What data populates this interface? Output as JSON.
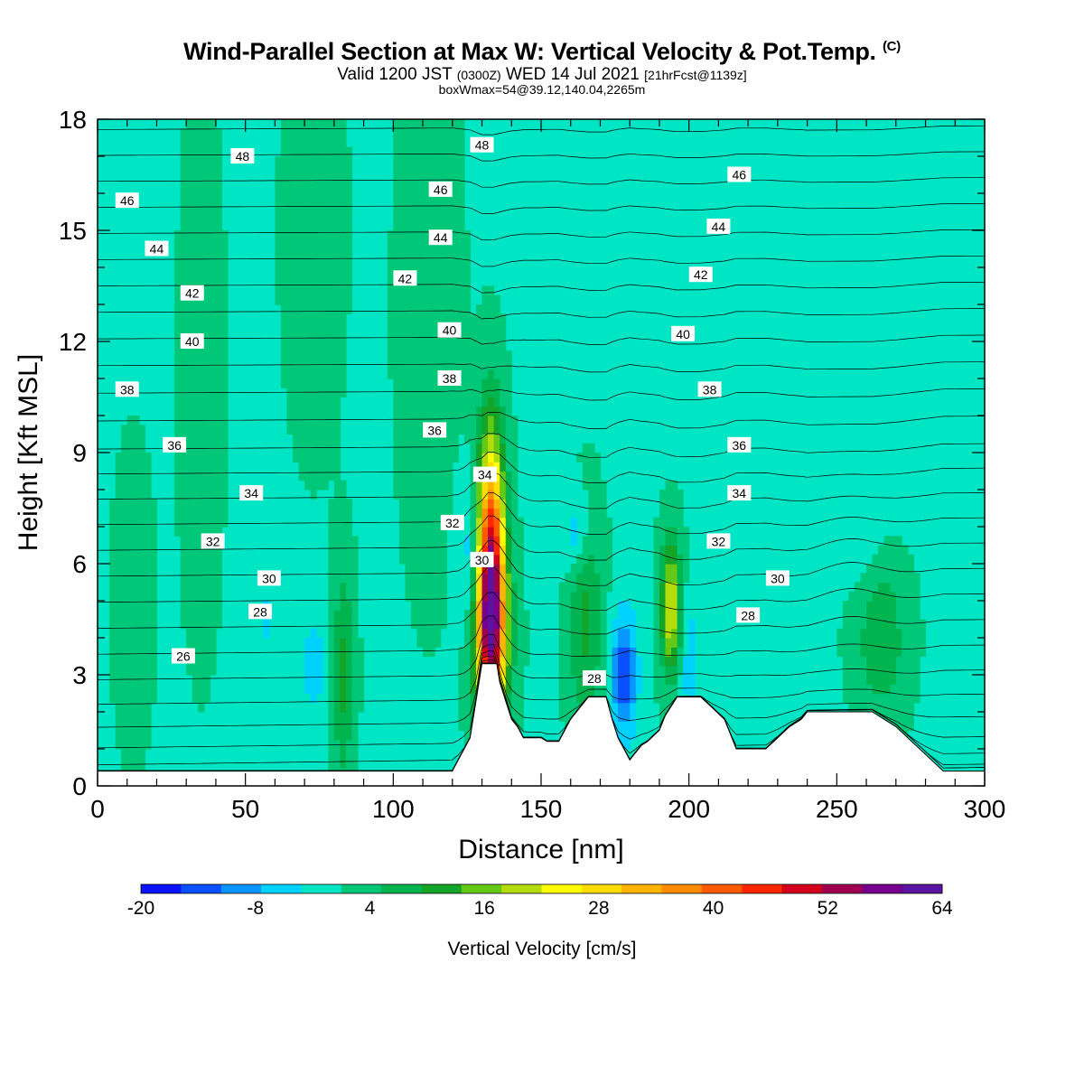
{
  "title": {
    "main": "Wind-Parallel Section at Max W: Vertical Velocity & Pot.Temp.",
    "copyright": "(C)"
  },
  "subtitle": {
    "valid_prefix": "Valid 1200 JST",
    "utc": "(0300Z)",
    "date": "WED 14 Jul 2021",
    "forecast": "[21hrFcst@1139z]"
  },
  "subtitle2": "boxWmax=54@39.12,140.04,2265m",
  "chart_data": {
    "type": "heatmap",
    "xlabel": "Distance [nm]",
    "ylabel": "Height [Kft MSL]",
    "xlim": [
      0,
      300
    ],
    "ylim": [
      0,
      18
    ],
    "xticks": [
      "0",
      "50",
      "100",
      "150",
      "200",
      "250",
      "300"
    ],
    "yticks": [
      "0",
      "3",
      "6",
      "9",
      "12",
      "15",
      "18"
    ],
    "background_color": "#00e6c4",
    "colorbar": {
      "label": "Vertical Velocity [cm/s]",
      "tick_labels": [
        "-20",
        "-8",
        "4",
        "16",
        "28",
        "40",
        "52",
        "64"
      ],
      "bounds": [
        -20,
        64
      ],
      "colors": [
        "#0a14ff",
        "#0a50ff",
        "#0a96ff",
        "#00d2ff",
        "#00e6c4",
        "#00c878",
        "#00b450",
        "#14a528",
        "#64c814",
        "#b4dc0a",
        "#ffff00",
        "#ffdc00",
        "#ffb400",
        "#ff8c00",
        "#ff5a00",
        "#ff2800",
        "#d2001e",
        "#a00050",
        "#78008c",
        "#5a14a0"
      ]
    },
    "terrain_profile": [
      [
        0,
        0.4
      ],
      [
        120,
        0.4
      ],
      [
        122,
        0.7
      ],
      [
        124,
        1.0
      ],
      [
        126,
        1.3
      ],
      [
        128,
        2.3
      ],
      [
        130,
        3.3
      ],
      [
        135,
        3.3
      ],
      [
        136,
        2.8
      ],
      [
        138,
        2.3
      ],
      [
        140,
        1.8
      ],
      [
        142,
        1.6
      ],
      [
        144,
        1.3
      ],
      [
        150,
        1.3
      ],
      [
        152,
        1.2
      ],
      [
        156,
        1.2
      ],
      [
        158,
        1.5
      ],
      [
        160,
        1.8
      ],
      [
        164,
        2.2
      ],
      [
        166,
        2.4
      ],
      [
        172,
        2.4
      ],
      [
        174,
        1.8
      ],
      [
        176,
        1.3
      ],
      [
        178,
        1.0
      ],
      [
        180,
        0.7
      ],
      [
        182,
        0.9
      ],
      [
        184,
        1.1
      ],
      [
        186,
        1.2
      ],
      [
        190,
        1.5
      ],
      [
        192,
        1.9
      ],
      [
        196,
        2.4
      ],
      [
        204,
        2.4
      ],
      [
        208,
        2.1
      ],
      [
        212,
        1.8
      ],
      [
        214,
        1.4
      ],
      [
        216,
        1.0
      ],
      [
        226,
        1.0
      ],
      [
        230,
        1.3
      ],
      [
        234,
        1.6
      ],
      [
        238,
        1.8
      ],
      [
        240,
        2.0
      ],
      [
        262,
        2.0
      ],
      [
        266,
        1.8
      ],
      [
        270,
        1.6
      ],
      [
        274,
        1.3
      ],
      [
        278,
        1.0
      ],
      [
        282,
        0.7
      ],
      [
        286,
        0.4
      ],
      [
        300,
        0.4
      ]
    ],
    "vertical_velocity_features": [
      {
        "x": 133,
        "y": 5.5,
        "sx": 3.2,
        "sy": 2.6,
        "value": 54
      },
      {
        "x": 133,
        "y": 4.0,
        "sx": 4.5,
        "sy": 1.5,
        "value": 18
      },
      {
        "x": 126,
        "y": 6.0,
        "sx": 3,
        "sy": 1.5,
        "value": -8
      },
      {
        "x": 178,
        "y": 3.0,
        "sx": 3,
        "sy": 1.2,
        "value": -16
      },
      {
        "x": 194,
        "y": 4.8,
        "sx": 2.5,
        "sy": 1.3,
        "value": 22
      },
      {
        "x": 165,
        "y": 4.5,
        "sx": 4,
        "sy": 2.0,
        "value": 10
      },
      {
        "x": 162,
        "y": 6.8,
        "sx": 3,
        "sy": 0.8,
        "value": -8
      },
      {
        "x": 200,
        "y": 3.5,
        "sx": 3,
        "sy": 1.4,
        "value": -6
      },
      {
        "x": 83,
        "y": 3.0,
        "sx": 2.5,
        "sy": 2.0,
        "value": 10
      },
      {
        "x": 73,
        "y": 3.3,
        "sx": 3,
        "sy": 1.0,
        "value": -6
      },
      {
        "x": 57,
        "y": 4.5,
        "sx": 3,
        "sy": 1.0,
        "value": -4
      },
      {
        "x": 265,
        "y": 4.0,
        "sx": 6,
        "sy": 1.5,
        "value": 8
      },
      {
        "x": 255,
        "y": 6.5,
        "sx": 8,
        "sy": 0.7,
        "value": -3
      },
      {
        "x": 112,
        "y": 13,
        "sx": 7,
        "sy": 5,
        "value": 3
      },
      {
        "x": 73,
        "y": 15,
        "sx": 7,
        "sy": 4,
        "value": 2.5
      },
      {
        "x": 35,
        "y": 11,
        "sx": 5,
        "sy": 5,
        "value": 2.5
      },
      {
        "x": 12,
        "y": 5,
        "sx": 5,
        "sy": 3,
        "value": 2
      }
    ],
    "contour_interval": 1,
    "contour_range": [
      22,
      51
    ],
    "contour_labels": [
      {
        "x": 49,
        "y": 17.0,
        "text": "48"
      },
      {
        "x": 130,
        "y": 17.3,
        "text": "48"
      },
      {
        "x": 10,
        "y": 15.8,
        "text": "46"
      },
      {
        "x": 116,
        "y": 16.1,
        "text": "46"
      },
      {
        "x": 217,
        "y": 16.5,
        "text": "46"
      },
      {
        "x": 20,
        "y": 14.5,
        "text": "44"
      },
      {
        "x": 116,
        "y": 14.8,
        "text": "44"
      },
      {
        "x": 210,
        "y": 15.1,
        "text": "44"
      },
      {
        "x": 32,
        "y": 13.3,
        "text": "42"
      },
      {
        "x": 104,
        "y": 13.7,
        "text": "42"
      },
      {
        "x": 204,
        "y": 13.8,
        "text": "42"
      },
      {
        "x": 32,
        "y": 12.0,
        "text": "40"
      },
      {
        "x": 119,
        "y": 12.3,
        "text": "40"
      },
      {
        "x": 198,
        "y": 12.2,
        "text": "40"
      },
      {
        "x": 10,
        "y": 10.7,
        "text": "38"
      },
      {
        "x": 119,
        "y": 11.0,
        "text": "38"
      },
      {
        "x": 207,
        "y": 10.7,
        "text": "38"
      },
      {
        "x": 26,
        "y": 9.2,
        "text": "36"
      },
      {
        "x": 114,
        "y": 9.6,
        "text": "36"
      },
      {
        "x": 217,
        "y": 9.2,
        "text": "36"
      },
      {
        "x": 52,
        "y": 7.9,
        "text": "34"
      },
      {
        "x": 131,
        "y": 8.4,
        "text": "34"
      },
      {
        "x": 217,
        "y": 7.9,
        "text": "34"
      },
      {
        "x": 39,
        "y": 6.6,
        "text": "32"
      },
      {
        "x": 120,
        "y": 7.1,
        "text": "32"
      },
      {
        "x": 210,
        "y": 6.6,
        "text": "32"
      },
      {
        "x": 58,
        "y": 5.6,
        "text": "30"
      },
      {
        "x": 130,
        "y": 6.1,
        "text": "30"
      },
      {
        "x": 230,
        "y": 5.6,
        "text": "30"
      },
      {
        "x": 55,
        "y": 4.7,
        "text": "28"
      },
      {
        "x": 168,
        "y": 2.9,
        "text": "28"
      },
      {
        "x": 220,
        "y": 4.6,
        "text": "28"
      },
      {
        "x": 29,
        "y": 3.5,
        "text": "26"
      }
    ]
  }
}
